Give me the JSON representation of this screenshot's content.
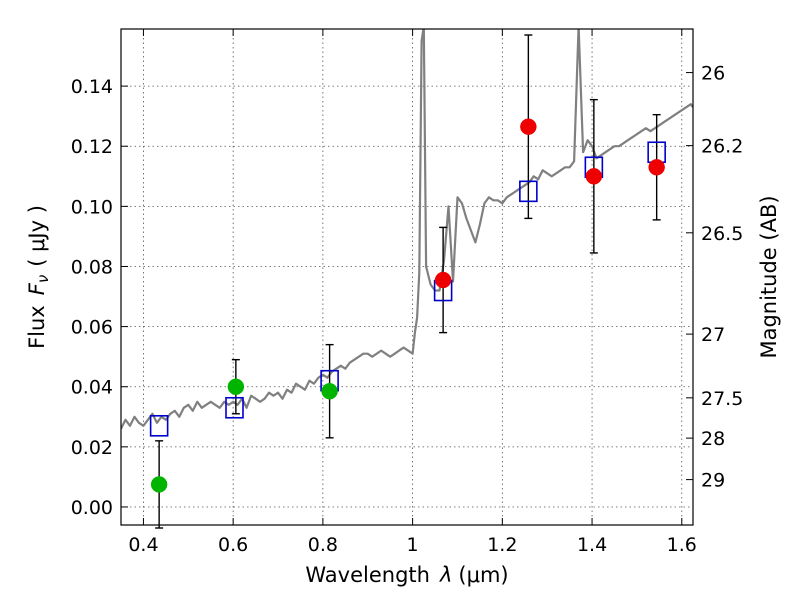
{
  "chart_data": {
    "type": "scatter",
    "xlabel_text": "Wavelength",
    "xlabel_symbol": "λ",
    "xlabel_unit": "(μm)",
    "ylabel_text": "Flux",
    "ylabel_symbol": "F",
    "ylabel_sub": "ν",
    "ylabel_unit": "( μJy )",
    "y2label": "Magnitude (AB)",
    "xlim": [
      0.35,
      1.625
    ],
    "ylim": [
      -0.006,
      0.159
    ],
    "grid": true,
    "x_ticks": [
      0.4,
      0.6,
      0.8,
      1.0,
      1.2,
      1.4,
      1.6
    ],
    "x_tick_labels": [
      "0.4",
      "0.6",
      "0.8",
      "1",
      "1.2",
      "1.4",
      "1.6"
    ],
    "y_ticks": [
      0.0,
      0.02,
      0.04,
      0.06,
      0.08,
      0.1,
      0.12,
      0.14
    ],
    "y_tick_labels": [
      "0.00",
      "0.02",
      "0.04",
      "0.06",
      "0.08",
      "0.10",
      "0.12",
      "0.14"
    ],
    "mag_ticks": [
      {
        "label": "26",
        "flux": 0.1445
      },
      {
        "label": "26.2",
        "flux": 0.1202
      },
      {
        "label": "26.5",
        "flux": 0.0912
      },
      {
        "label": "27",
        "flux": 0.0575
      },
      {
        "label": "27.5",
        "flux": 0.0363
      },
      {
        "label": "28",
        "flux": 0.0229
      },
      {
        "label": "29",
        "flux": 0.0091
      }
    ],
    "series": [
      {
        "kind": "spectrum",
        "color": "#808080",
        "x": [
          0.35,
          0.36,
          0.37,
          0.38,
          0.39,
          0.4,
          0.41,
          0.42,
          0.43,
          0.44,
          0.45,
          0.46,
          0.47,
          0.48,
          0.49,
          0.5,
          0.51,
          0.52,
          0.53,
          0.54,
          0.55,
          0.56,
          0.57,
          0.58,
          0.59,
          0.6,
          0.61,
          0.62,
          0.63,
          0.64,
          0.65,
          0.66,
          0.67,
          0.68,
          0.69,
          0.7,
          0.71,
          0.72,
          0.73,
          0.74,
          0.75,
          0.76,
          0.77,
          0.78,
          0.79,
          0.8,
          0.81,
          0.82,
          0.83,
          0.84,
          0.85,
          0.86,
          0.87,
          0.88,
          0.89,
          0.9,
          0.91,
          0.92,
          0.93,
          0.94,
          0.95,
          0.96,
          0.97,
          0.98,
          0.99,
          1.0,
          1.005,
          1.01,
          1.015,
          1.02,
          1.025,
          1.03,
          1.04,
          1.05,
          1.06,
          1.07,
          1.08,
          1.09,
          1.1,
          1.11,
          1.12,
          1.13,
          1.14,
          1.15,
          1.16,
          1.17,
          1.18,
          1.19,
          1.2,
          1.21,
          1.22,
          1.23,
          1.24,
          1.25,
          1.26,
          1.27,
          1.28,
          1.29,
          1.3,
          1.31,
          1.32,
          1.33,
          1.34,
          1.35,
          1.36,
          1.37,
          1.38,
          1.39,
          1.4,
          1.41,
          1.42,
          1.43,
          1.44,
          1.45,
          1.46,
          1.47,
          1.48,
          1.49,
          1.5,
          1.51,
          1.52,
          1.53,
          1.54,
          1.55,
          1.56,
          1.57,
          1.58,
          1.59,
          1.6,
          1.61,
          1.62,
          1.625
        ],
        "y": [
          0.026,
          0.029,
          0.027,
          0.03,
          0.028,
          0.027,
          0.029,
          0.031,
          0.028,
          0.03,
          0.029,
          0.031,
          0.032,
          0.03,
          0.033,
          0.034,
          0.032,
          0.035,
          0.033,
          0.034,
          0.035,
          0.034,
          0.033,
          0.035,
          0.034,
          0.035,
          0.034,
          0.036,
          0.033,
          0.037,
          0.036,
          0.035,
          0.036,
          0.038,
          0.037,
          0.038,
          0.036,
          0.039,
          0.038,
          0.041,
          0.04,
          0.039,
          0.042,
          0.041,
          0.043,
          0.044,
          0.043,
          0.045,
          0.046,
          0.047,
          0.046,
          0.048,
          0.049,
          0.05,
          0.051,
          0.051,
          0.05,
          0.051,
          0.052,
          0.051,
          0.05,
          0.051,
          0.052,
          0.053,
          0.052,
          0.051,
          0.058,
          0.063,
          0.078,
          0.155,
          0.16,
          0.08,
          0.074,
          0.072,
          0.072,
          0.082,
          0.1,
          0.075,
          0.103,
          0.101,
          0.096,
          0.092,
          0.088,
          0.094,
          0.101,
          0.103,
          0.102,
          0.102,
          0.101,
          0.103,
          0.104,
          0.105,
          0.106,
          0.107,
          0.108,
          0.11,
          0.109,
          0.112,
          0.111,
          0.11,
          0.111,
          0.112,
          0.113,
          0.113,
          0.115,
          0.16,
          0.118,
          0.122,
          0.12,
          0.116,
          0.117,
          0.118,
          0.119,
          0.12,
          0.12,
          0.121,
          0.122,
          0.123,
          0.124,
          0.125,
          0.126,
          0.125,
          0.126,
          0.127,
          0.128,
          0.129,
          0.13,
          0.131,
          0.132,
          0.133,
          0.134,
          0.133
        ]
      },
      {
        "kind": "model_squares",
        "color": "#0000cc",
        "x": [
          0.435,
          0.603,
          0.815,
          1.068,
          1.258,
          1.404,
          1.544
        ],
        "y": [
          0.027,
          0.033,
          0.042,
          0.072,
          0.105,
          0.113,
          0.118
        ]
      },
      {
        "kind": "detections",
        "color": "#00b400",
        "x": [
          0.435,
          0.606,
          0.815
        ],
        "y": [
          0.0075,
          0.04,
          0.0385
        ],
        "yerr": [
          0.0145,
          0.009,
          0.0155
        ]
      },
      {
        "kind": "detections",
        "color": "#ee0000",
        "x": [
          1.068,
          1.258,
          1.404,
          1.544
        ],
        "y": [
          0.0755,
          0.1265,
          0.11,
          0.113
        ],
        "yerr": [
          0.0175,
          0.0305,
          0.0255,
          0.0175
        ]
      }
    ]
  }
}
